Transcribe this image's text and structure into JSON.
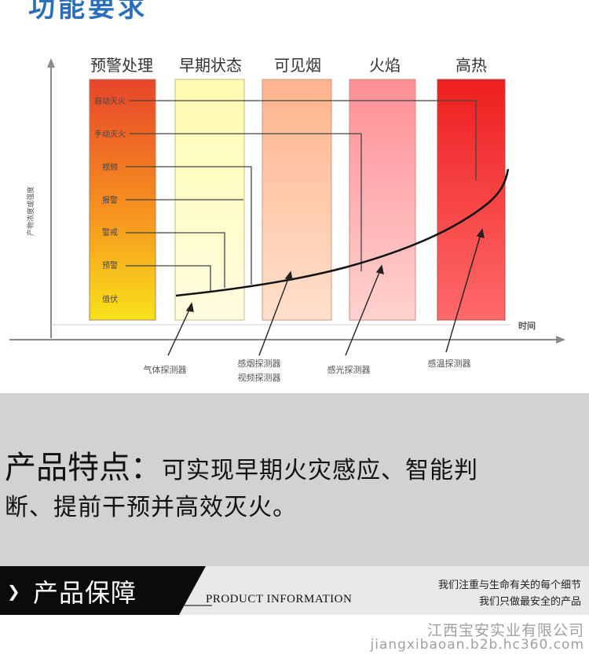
{
  "header": {
    "title": "功能要求"
  },
  "diagram": {
    "categories": [
      "预警处理",
      "早期状态",
      "可见烟",
      "火焰",
      "高热"
    ],
    "levels": [
      "自动灭火",
      "手动灭火",
      "视频",
      "报警",
      "警戒",
      "预警",
      "值伏"
    ],
    "y_axis_label": "产物浓度或强度",
    "x_axis_label": "时间",
    "detectors": [
      "气体探测器",
      "感烟探测器",
      "视频探测器",
      "感光探测器",
      "感温探测器"
    ],
    "colors": {
      "panel_red": "#e8452a",
      "panel_yellow": "#f7e21a",
      "early": "#fffbb0",
      "smoke": "#ffc7a6",
      "flame": "#ff9da0",
      "heat": "#f12a2a"
    }
  },
  "features": {
    "label": "产品特点：",
    "text_line1": "可实现早期火灾感应、智能判",
    "text_line2": "断、提前干预并高效灭火。"
  },
  "banner": {
    "title": "产品保障",
    "english": "PRODUCT INFORMATION",
    "slogan_line1": "我们注重与生命有关的每个细节",
    "slogan_line2": "我们只做最安全的产品"
  },
  "footer": {
    "company": "江西宝安实业有限公司",
    "url": "jiangxibaoan.b2b.hc360.com"
  }
}
